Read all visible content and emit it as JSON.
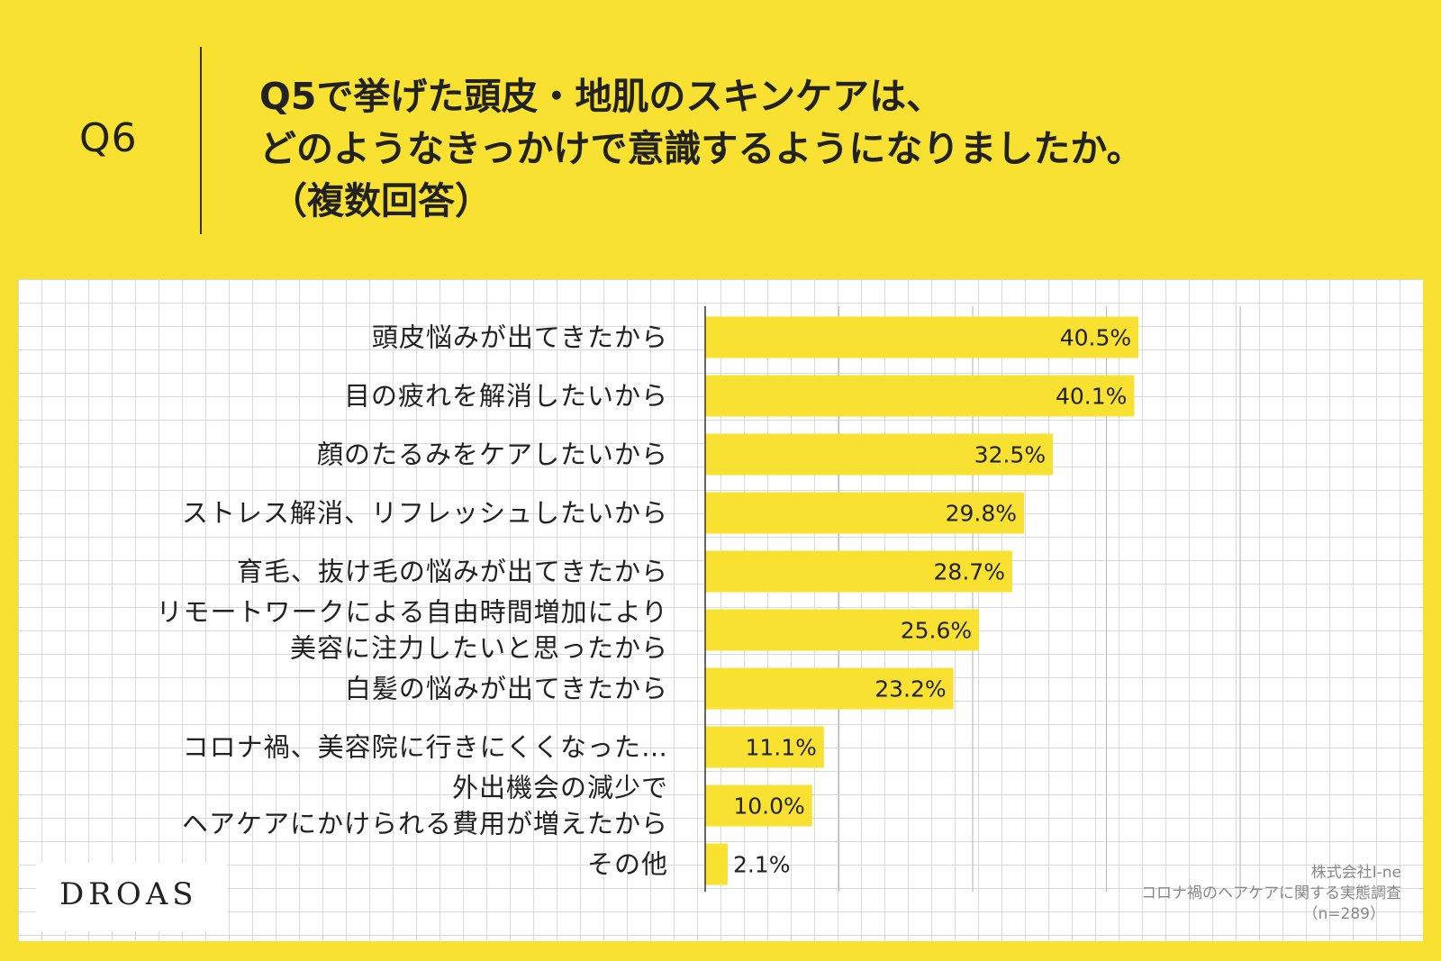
{
  "header": {
    "q_number": "Q6",
    "question_line1": "Q5で挙げた頭皮・地肌のスキンケアは、",
    "question_line2": "どのようなきっかけで意識するようになりましたか。",
    "question_line3": "（複数回答）"
  },
  "colors": {
    "background": "#f9e131",
    "bar": "#f9e131",
    "grid": "#d9d9d9"
  },
  "chart_data": {
    "type": "bar",
    "orientation": "horizontal",
    "categories": [
      [
        "頭皮悩みが出てきたから"
      ],
      [
        "目の疲れを解消したいから"
      ],
      [
        "顔のたるみをケアしたいから"
      ],
      [
        "ストレス解消、リフレッシュしたいから"
      ],
      [
        "育毛、抜け毛の悩みが出てきたから"
      ],
      [
        "リモートワークによる自由時間増加により",
        "美容に注力したいと思ったから"
      ],
      [
        "白髪の悩みが出てきたから"
      ],
      [
        "コロナ禍、美容院に行きにくくなった…"
      ],
      [
        "外出機会の減少で",
        "ヘアケアにかけられる費用が増えたから"
      ],
      [
        "その他"
      ]
    ],
    "values": [
      40.5,
      40.1,
      32.5,
      29.8,
      28.7,
      25.6,
      23.2,
      11.1,
      10.0,
      2.1
    ],
    "value_labels": [
      "40.5%",
      "40.1%",
      "32.5%",
      "29.8%",
      "28.7%",
      "25.6%",
      "23.2%",
      "11.1%",
      "10.0%",
      "2.1%"
    ],
    "xlim": [
      0,
      50
    ],
    "gridlines_at": [
      0,
      12.5,
      25,
      37.5,
      50
    ],
    "legend": "none"
  },
  "footer": {
    "logo": "DROAS",
    "source_line1": "株式会社I-ne",
    "source_line2": "コロナ禍のヘアケアに関する実態調査",
    "source_line3": "（n=289）"
  }
}
